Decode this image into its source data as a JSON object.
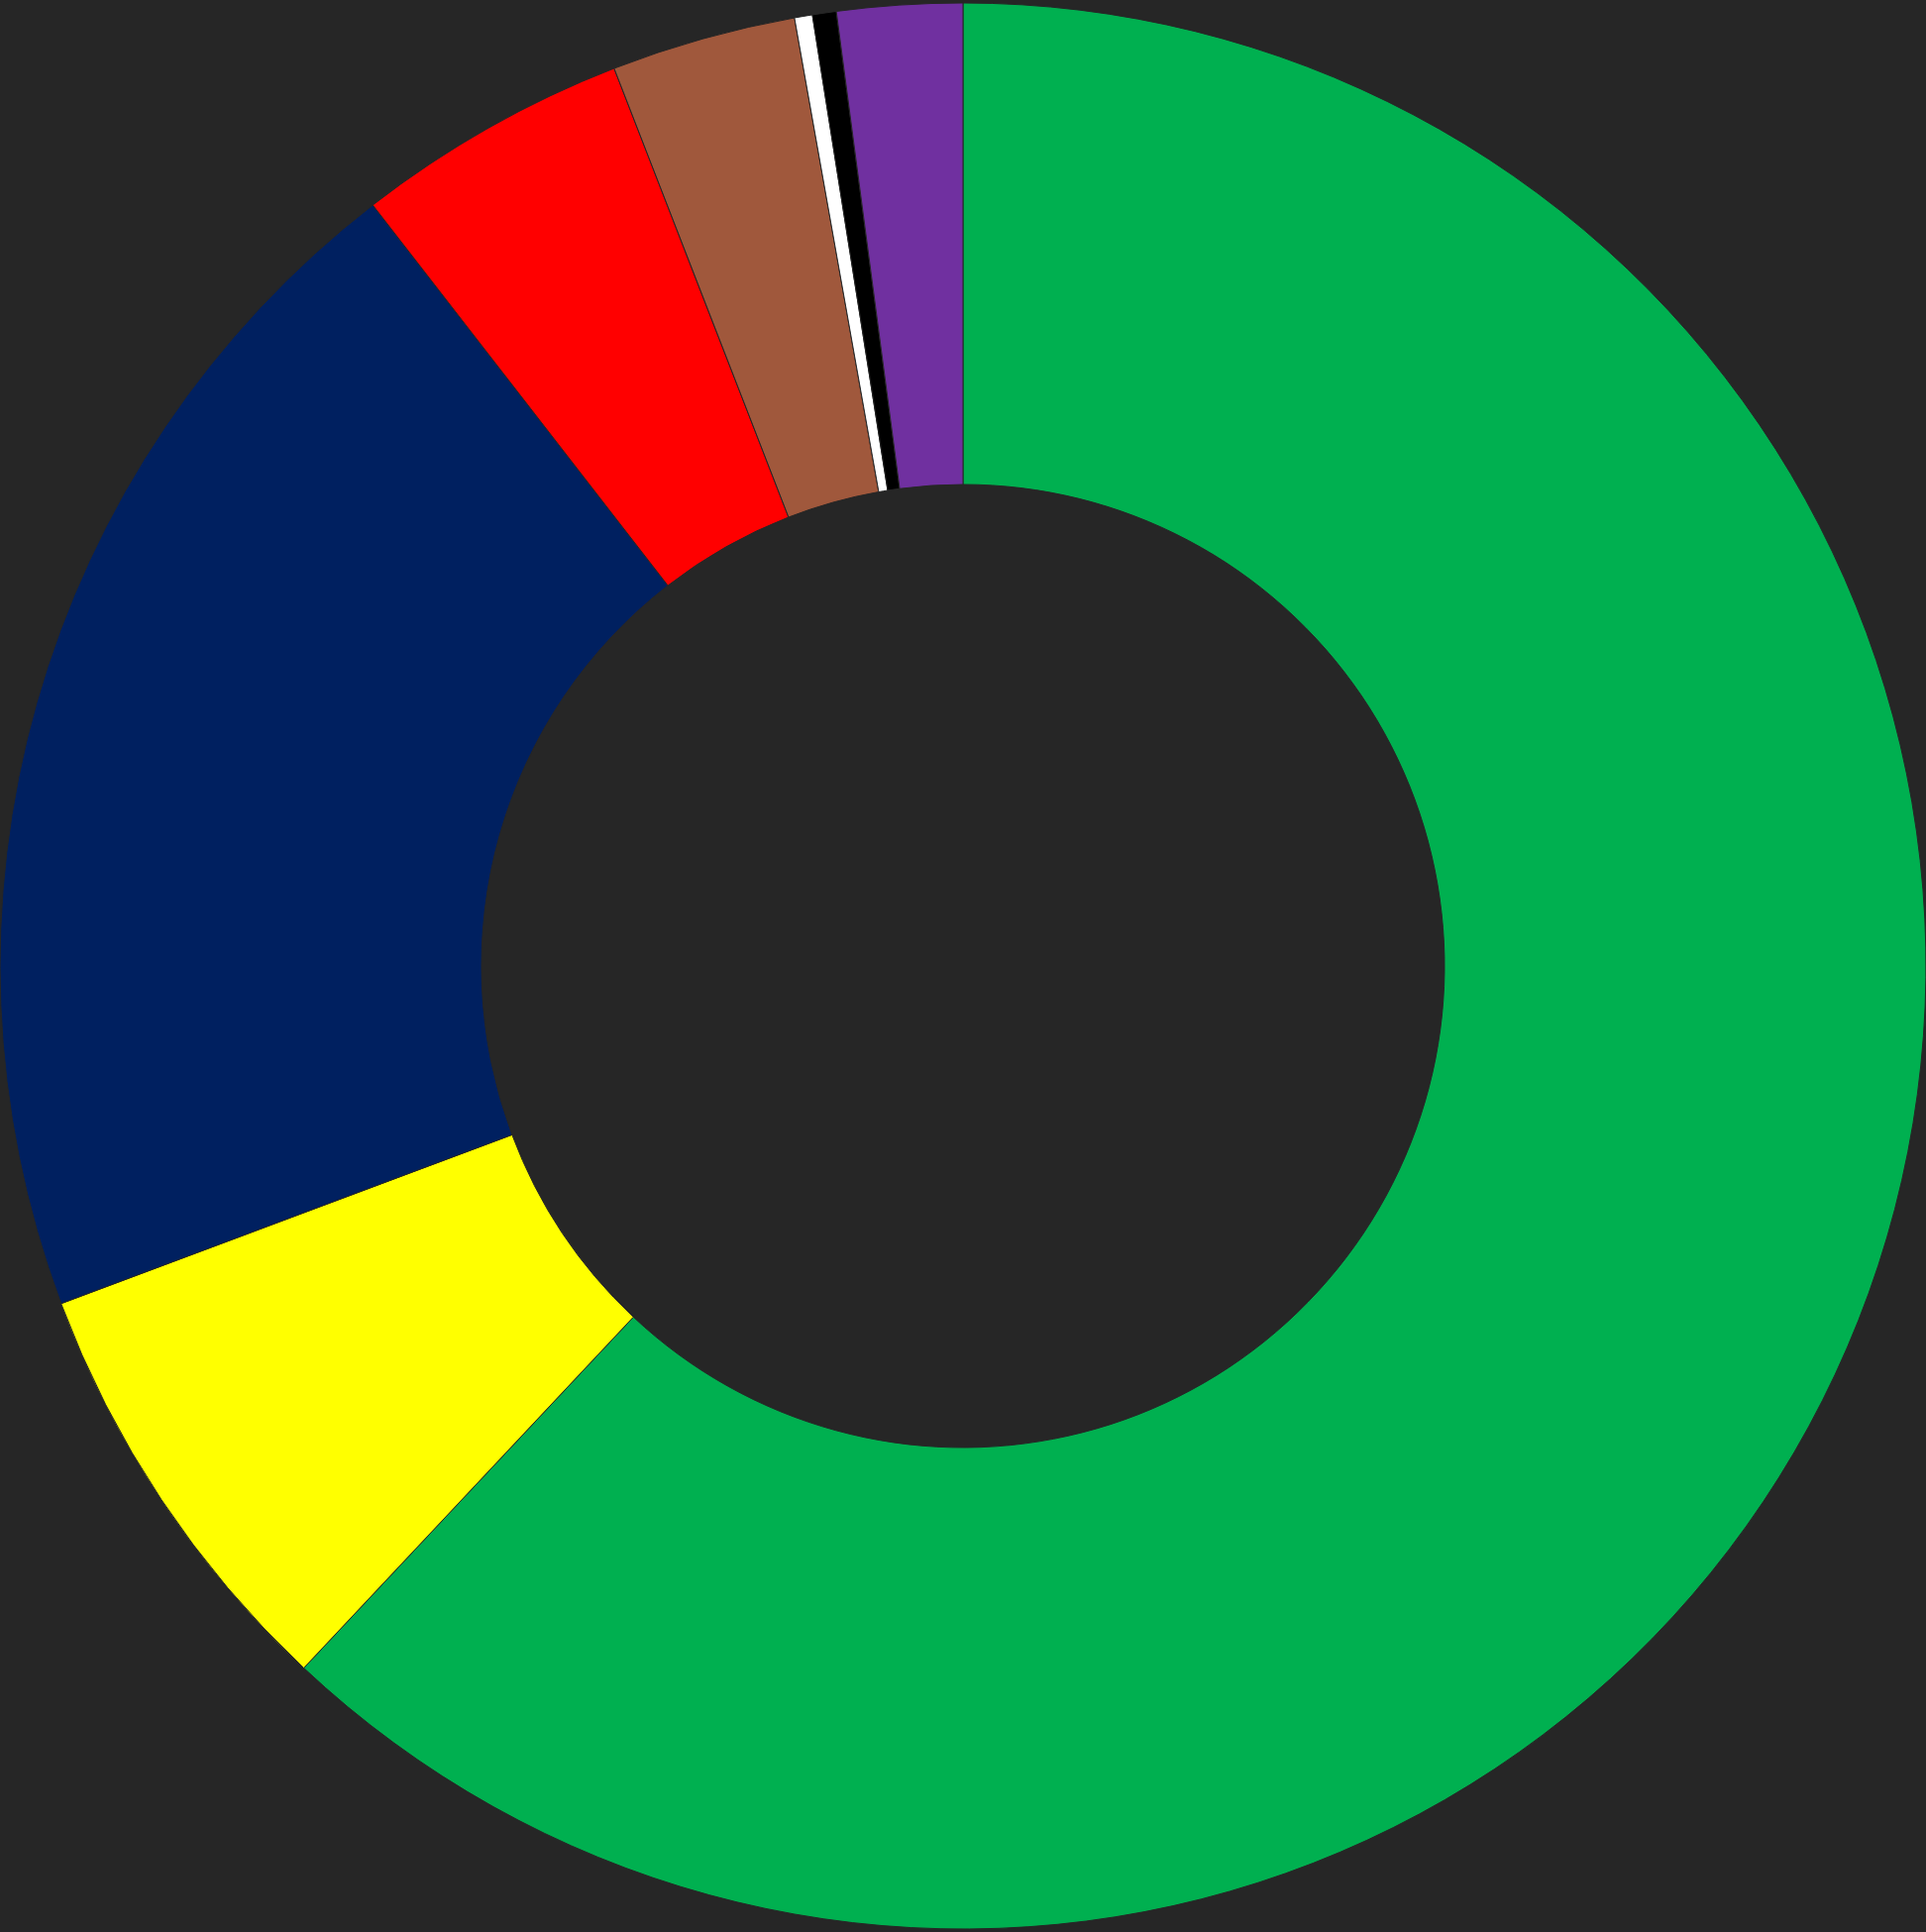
{
  "chart_data": {
    "type": "donut",
    "categories": [
      null,
      null,
      null,
      null,
      null,
      null,
      null,
      null
    ],
    "values": [
      62,
      7.3,
      20.2,
      4.6,
      3.1,
      0.3,
      0.4,
      2.1
    ],
    "colors": [
      "#00b050",
      "#ffff00",
      "#002060",
      "#ff0000",
      "#a0583c",
      "#ffffff",
      "#000000",
      "#7030a0"
    ],
    "legend": false
  }
}
